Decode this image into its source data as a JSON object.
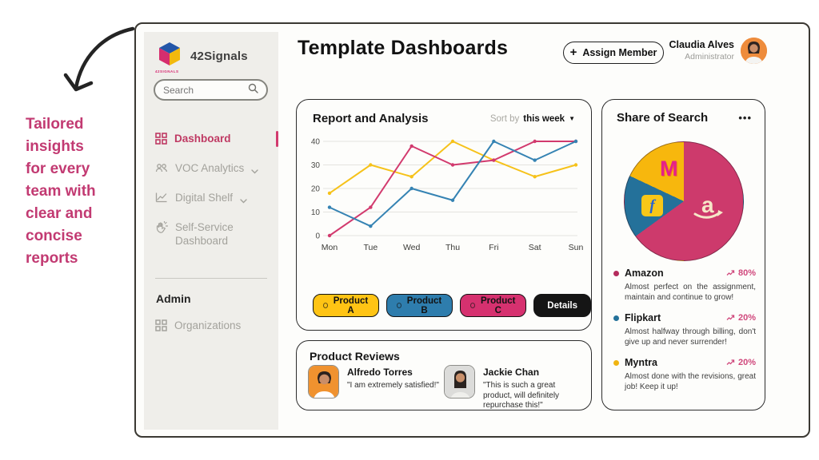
{
  "annotation": {
    "text": "Tailored\ninsights\nfor every\nteam with\nclear and\nconcise\nreports",
    "color": "#c23a72"
  },
  "sidebar": {
    "brand": {
      "name": "42Signals",
      "caption": "42SIGNALS"
    },
    "search": {
      "placeholder": "Search"
    },
    "items": [
      {
        "label": "Dashboard",
        "active": true
      },
      {
        "label": "VOC Analytics",
        "expandable": true
      },
      {
        "label": "Digital Shelf",
        "expandable": true
      },
      {
        "label": "Self-Service Dashboard",
        "expandable": false
      }
    ],
    "admin": {
      "title": "Admin",
      "items": [
        {
          "label": "Organizations"
        }
      ]
    }
  },
  "header": {
    "title": "Template Dashboards",
    "assign_plus": "+",
    "assign_label": "Assign Member",
    "user": {
      "name": "Claudia Alves",
      "role": "Administrator"
    }
  },
  "report_card": {
    "title": "Report and Analysis",
    "sort_label": "Sort by",
    "sort_value": "this week",
    "sort_caret": "▼",
    "details_button": "Details"
  },
  "chart_data": [
    {
      "type": "line",
      "title": "Report and Analysis",
      "x": [
        "Mon",
        "Tue",
        "Wed",
        "Thu",
        "Fri",
        "Sat",
        "Sun"
      ],
      "series": [
        {
          "name": "Product A",
          "color": "#f6c21a",
          "values": [
            18,
            30,
            25,
            40,
            32,
            25,
            30
          ]
        },
        {
          "name": "Product C",
          "color": "#d23a6e",
          "values": [
            0,
            12,
            38,
            30,
            32,
            40,
            40
          ]
        },
        {
          "name": "Product B",
          "color": "#3583b3",
          "values": [
            12,
            4,
            20,
            15,
            40,
            32,
            40
          ]
        }
      ],
      "ylim": [
        0,
        40
      ],
      "yticks": [
        0,
        10,
        20,
        30,
        40
      ],
      "grid": true,
      "legend_position": "bottom"
    },
    {
      "type": "pie",
      "title": "Share of Search",
      "slices": [
        {
          "name": "Amazon",
          "value": 65,
          "color": "#cd3a6c"
        },
        {
          "name": "Flipkart",
          "value": 17,
          "color": "#24719a"
        },
        {
          "name": "Myntra",
          "value": 18,
          "color": "#f7b70d"
        }
      ]
    }
  ],
  "share_card": {
    "title": "Share of Search",
    "menu_icon": "•••",
    "flipkart_glyph": "f",
    "myntra_glyph": "M",
    "items": [
      {
        "name": "Amazon",
        "trend": "80%",
        "description": "Almost perfect on the assignment, maintain and continue to grow!",
        "color": "#b42b5c"
      },
      {
        "name": "Flipkart",
        "trend": "20%",
        "description": "Almost halfway through billing, don't give up and never surrender!",
        "color": "#24719a"
      },
      {
        "name": "Myntra",
        "trend": "20%",
        "description": "Almost done with the revisions, great job! Keep it up!",
        "color": "#f0b411"
      }
    ]
  },
  "reviews_card": {
    "title": "Product Reviews",
    "reviews": [
      {
        "name": "Alfredo Torres",
        "quote": "\"I am extremely satisfied!\""
      },
      {
        "name": "Jackie Chan",
        "quote": "\"This is such a great product, will definitely repurchase this!\""
      }
    ]
  }
}
